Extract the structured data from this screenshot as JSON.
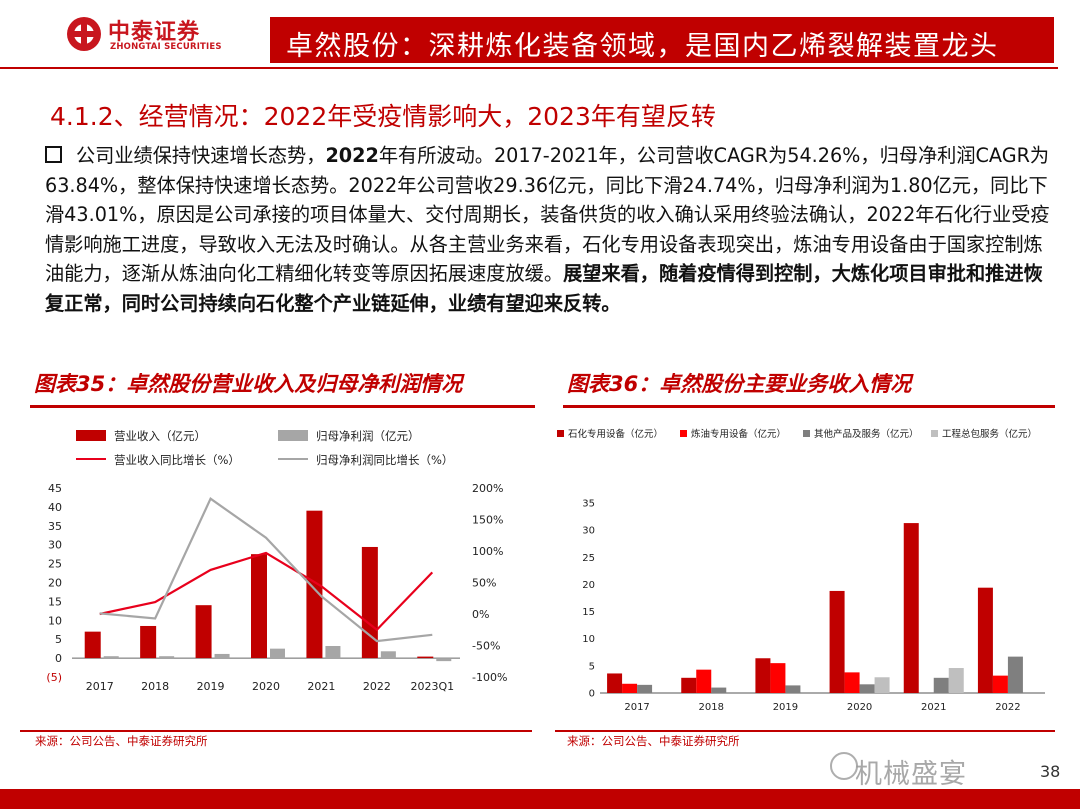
{
  "header": {
    "brand_cn": "中泰证券",
    "brand_en": "ZHONGTAI SECURITIES",
    "title": "卓然股份：深耕炼化装备领域，是国内乙烯裂解装置龙头",
    "accent_color": "#c00000"
  },
  "section_heading": "4.1.2、经营情况：2022年受疫情影响大，2023年有望反转",
  "paragraph": {
    "part1": "公司业绩保持快速增长态势，",
    "part2_bold": "2022",
    "part3": "年有所波动。2017-2021年，公司营收CAGR为54.26%，归母净利润CAGR为63.84%，整体保持快速增长态势。2022年公司营收29.36亿元，同比下滑24.74%，归母净利润为1.80亿元，同比下滑43.01%，原因是公司承接的项目体量大、交付周期长，装备供货的收入确认采用终验法确认，2022年石化行业受疫情影响施工进度，导致收入无法及时确认。从各主营业务来看，石化专用设备表现突出，炼油专用设备由于国家控制炼油能力，逐渐从炼油向化工精细化转变等原因拓展速度放缓。",
    "part4_bold": "展望来看，随着疫情得到控制，大炼化项目审批和推进恢复正常，同时公司持续向石化整个产业链延伸，业绩有望迎来反转。"
  },
  "chart35": {
    "title": "图表35：卓然股份营业收入及归母净利润情况",
    "source": "来源：公司公告、中泰证券研究所"
  },
  "chart36": {
    "title": "图表36：卓然股份主要业务收入情况",
    "source": "来源：公司公告、中泰证券研究所"
  },
  "page_number": "38",
  "watermark": "机械盛宴",
  "watermark_icon": "snowball-icon",
  "chart_data": [
    {
      "type": "bar",
      "categories": [
        "2017",
        "2018",
        "2019",
        "2020",
        "2021",
        "2022",
        "2023Q1"
      ],
      "series": [
        {
          "name": "营业收入（亿元）",
          "kind": "bar",
          "axis": "left",
          "color": "#c00000",
          "values": [
            7,
            8.5,
            14,
            27.5,
            39,
            29.4,
            0.4
          ]
        },
        {
          "name": "归母净利润（亿元）",
          "kind": "bar",
          "axis": "left",
          "color": "#a6a6a6",
          "values": [
            0.5,
            0.5,
            1.1,
            2.5,
            3.2,
            1.8,
            -0.8
          ]
        },
        {
          "name": "营业收入同比增长（%）",
          "kind": "line",
          "axis": "right",
          "color": "#e8001c",
          "values": [
            0,
            19,
            70,
            97,
            44,
            -25,
            66
          ]
        },
        {
          "name": "归母净利润同比增长（%）",
          "kind": "line",
          "axis": "right",
          "color": "#a6a6a6",
          "values": [
            1,
            -7,
            183,
            121,
            28,
            -43,
            -33
          ]
        }
      ],
      "y_left": {
        "min": -5,
        "max": 45,
        "ticks": [
          "(5)",
          "0",
          "5",
          "10",
          "15",
          "20",
          "25",
          "30",
          "35",
          "40",
          "45"
        ]
      },
      "y_right": {
        "min": -100,
        "max": 200,
        "ticks": [
          "-100%",
          "-50%",
          "0%",
          "50%",
          "100%",
          "150%",
          "200%"
        ]
      },
      "legend_position": "top-left"
    },
    {
      "type": "bar",
      "categories": [
        "2017",
        "2018",
        "2019",
        "2020",
        "2021",
        "2022"
      ],
      "series": [
        {
          "name": "石化专用设备（亿元）",
          "color": "#c00000",
          "values": [
            3.6,
            2.8,
            6.4,
            18.8,
            31.3,
            19.4
          ]
        },
        {
          "name": "炼油专用设备（亿元）",
          "color": "#ff0000",
          "values": [
            1.7,
            4.3,
            5.5,
            3.8,
            0,
            3.2
          ]
        },
        {
          "name": "其他产品及服务（亿元）",
          "color": "#7f7f7f",
          "values": [
            1.5,
            1.0,
            1.4,
            1.6,
            2.8,
            6.7
          ]
        },
        {
          "name": "工程总包服务（亿元）",
          "color": "#bfbfbf",
          "values": [
            0,
            0,
            0,
            2.9,
            4.6,
            0
          ]
        }
      ],
      "y": {
        "min": 0,
        "max": 35,
        "ticks": [
          "0",
          "5",
          "10",
          "15",
          "20",
          "25",
          "30",
          "35"
        ]
      },
      "legend_position": "top"
    }
  ]
}
